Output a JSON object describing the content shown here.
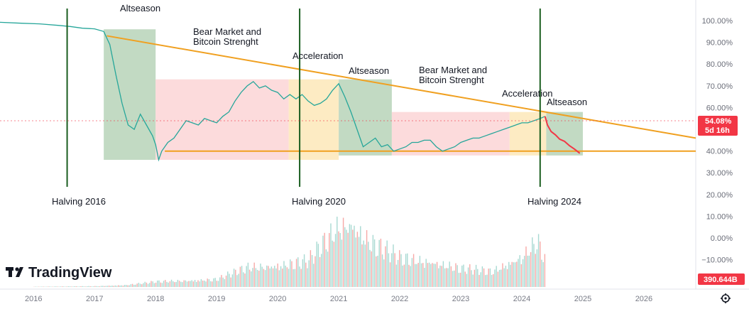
{
  "chart_data": {
    "type": "line",
    "title": "",
    "xlabel": "",
    "ylabel": "",
    "x_ticks": [
      "2016",
      "2017",
      "2018",
      "2019",
      "2020",
      "2021",
      "2022",
      "2023",
      "2024",
      "2025",
      "2026"
    ],
    "y_ticks": [
      "100.00%",
      "90.00%",
      "80.00%",
      "70.00%",
      "60.00%",
      "50.00%",
      "40.00%",
      "30.00%",
      "20.00%",
      "10.00%",
      "0.00%",
      "−10.00%"
    ],
    "ylim": [
      -10,
      110
    ],
    "xlim": [
      2015.45,
      2026.85
    ],
    "last_value_label": "54.08%",
    "countdown_label": "5d 16h",
    "volume_label": "390.644B",
    "series": [
      {
        "color": "#26a69a",
        "x": [
          2015.45,
          2015.8,
          2016.1,
          2016.4,
          2016.6,
          2016.8,
          2017.0,
          2017.15,
          2017.25,
          2017.35,
          2017.45,
          2017.55,
          2017.65,
          2017.75,
          2017.85,
          2017.95,
          2018.0,
          2018.05,
          2018.1,
          2018.2,
          2018.3,
          2018.4,
          2018.5,
          2018.6,
          2018.7,
          2018.8,
          2018.9,
          2019.0,
          2019.1,
          2019.2,
          2019.3,
          2019.4,
          2019.5,
          2019.6,
          2019.7,
          2019.8,
          2019.9,
          2020.0,
          2020.1,
          2020.2,
          2020.3,
          2020.4,
          2020.5,
          2020.6,
          2020.7,
          2020.8,
          2020.9,
          2021.0,
          2021.1,
          2021.2,
          2021.3,
          2021.4,
          2021.5,
          2021.6,
          2021.7,
          2021.8,
          2021.9,
          2022.0,
          2022.1,
          2022.2,
          2022.3,
          2022.4,
          2022.5,
          2022.6,
          2022.7,
          2022.8,
          2022.9,
          2023.0,
          2023.1,
          2023.2,
          2023.3,
          2023.4,
          2023.5,
          2023.6,
          2023.7,
          2023.8,
          2023.9,
          2024.0,
          2024.1,
          2024.2,
          2024.3,
          2024.38
        ],
        "values": [
          99.2,
          98.8,
          98.5,
          97.8,
          97.3,
          96.5,
          96.2,
          95.0,
          89.0,
          75.0,
          62.0,
          52.0,
          50.0,
          57.0,
          52.0,
          47.0,
          43.0,
          36.0,
          40.0,
          44.0,
          46.0,
          50.0,
          54.0,
          53.0,
          52.0,
          55.0,
          54.0,
          53.0,
          56.0,
          58.0,
          63.0,
          67.0,
          70.0,
          72.0,
          69.0,
          70.0,
          68.0,
          67.0,
          64.0,
          66.0,
          64.0,
          66.0,
          63.0,
          61.0,
          62.0,
          64.0,
          68.0,
          71.0,
          65.0,
          58.0,
          50.0,
          42.0,
          44.0,
          46.0,
          42.0,
          43.0,
          40.0,
          41.0,
          42.0,
          44.0,
          44.0,
          45.0,
          45.0,
          42.0,
          40.0,
          41.0,
          42.0,
          44.0,
          45.0,
          46.0,
          46.0,
          47.0,
          48.0,
          49.0,
          50.0,
          51.0,
          52.0,
          53.0,
          53.0,
          54.0,
          55.0,
          56.0
        ]
      },
      {
        "color": "#f23645",
        "x": [
          2024.38,
          2024.42,
          2024.48,
          2024.55,
          2024.62,
          2024.7,
          2024.78,
          2024.86,
          2024.95
        ],
        "values": [
          56.0,
          52.0,
          49.0,
          47.5,
          45.5,
          44.5,
          42.5,
          41.0,
          39.0
        ]
      }
    ],
    "volume": {
      "x": [
        2016.0,
        2016.5,
        2017.0,
        2017.5,
        2018.0,
        2018.5,
        2019.0,
        2019.5,
        2020.0,
        2020.5,
        2021.0,
        2021.2,
        2021.5,
        2022.0,
        2022.5,
        2023.0,
        2023.5,
        2024.0,
        2024.25,
        2024.38
      ],
      "values": [
        0.5,
        0.8,
        1.2,
        3.0,
        8.0,
        10.0,
        12.0,
        30.0,
        34.0,
        40.0,
        95.0,
        100.0,
        70.0,
        44.0,
        40.0,
        28.0,
        24.0,
        48.0,
        70.0,
        40.0
      ]
    },
    "annotations": [
      {
        "text": "Altseason"
      },
      {
        "text": "Bear Market and Bitcoin Strenght"
      },
      {
        "text": "Acceleration"
      },
      {
        "text": "Altseason"
      },
      {
        "text": "Bear Market and Bitcoin Strenght"
      },
      {
        "text": "Acceleration"
      },
      {
        "text": "Altseason"
      }
    ],
    "halvings": [
      {
        "label": "Halving 2016",
        "x": 2016.55
      },
      {
        "label": "Halving 2020",
        "x": 2020.36
      },
      {
        "label": "Halving 2024",
        "x": 2024.3
      }
    ],
    "zones": [
      {
        "kind": "altseason",
        "color": "#b7d4b9",
        "x0": 2017.15,
        "x1": 2018.0,
        "y0": 36,
        "y1": 96
      },
      {
        "kind": "bear",
        "color": "#fbd5d6",
        "x0": 2018.0,
        "x1": 2020.18,
        "y0": 36,
        "y1": 73
      },
      {
        "kind": "acceleration",
        "color": "#fde7b8",
        "x0": 2020.18,
        "x1": 2021.0,
        "y0": 36,
        "y1": 73
      },
      {
        "kind": "altseason",
        "color": "#b7d4b9",
        "x0": 2021.0,
        "x1": 2021.87,
        "y0": 38,
        "y1": 73
      },
      {
        "kind": "bear",
        "color": "#fbd5d6",
        "x0": 2021.87,
        "x1": 2023.8,
        "y0": 38,
        "y1": 58
      },
      {
        "kind": "acceleration",
        "color": "#fde7b8",
        "x0": 2023.8,
        "x1": 2024.4,
        "y0": 38,
        "y1": 58
      },
      {
        "kind": "altseason",
        "color": "#b7d4b9",
        "x0": 2024.4,
        "x1": 2025.0,
        "y0": 38,
        "y1": 58
      }
    ],
    "trendlines": [
      {
        "color": "#f0a020",
        "x0": 2017.2,
        "y0": 93.0,
        "x1": 2026.85,
        "y1": 46.0
      },
      {
        "color": "#f0a020",
        "x0": 2018.15,
        "y0": 40.0,
        "x1": 2026.85,
        "y1": 40.0
      }
    ]
  },
  "brand": {
    "name": "TradingView",
    "logo_icon": "tradingview-logo-icon"
  },
  "settings_icon": "settings-gear-icon"
}
